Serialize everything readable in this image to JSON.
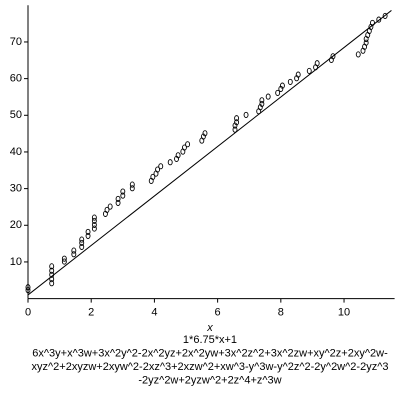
{
  "chart_data": {
    "type": "scatter",
    "xlabel": "x",
    "legend_lines": [
      "1*6.75*x+1",
      "6x^3y+x^3w+3x^2y^2-2x^2yz+2x^2yw+3x^2z^2+3x^2zw+xy^2z+2xy^2w-",
      "xyz^2+2xyzw+2xyw^2-2xz^3+2xzw^2+xw^3-y^3w-y^2z^2-2y^2w^2-2yz^3",
      "-2yz^2w+2yzw^2+2z^4+z^3w"
    ],
    "xlim": [
      0,
      11.6
    ],
    "ylim": [
      0,
      80
    ],
    "xticks": [
      0,
      2,
      4,
      6,
      8,
      10
    ],
    "yticks": [
      10,
      20,
      30,
      40,
      50,
      60,
      70
    ],
    "series": [
      {
        "style": "points",
        "color": "#000000",
        "x": [
          0,
          0,
          0.75,
          0.75,
          0.75,
          0.75,
          0.75,
          1.15,
          1.15,
          1.45,
          1.45,
          1.7,
          1.7,
          1.7,
          1.9,
          1.9,
          2.1,
          2.1,
          2.1,
          2.1,
          2.45,
          2.5,
          2.6,
          2.85,
          2.85,
          3.0,
          3.0,
          3.3,
          3.3,
          3.9,
          3.95,
          4.05,
          4.1,
          4.2,
          4.5,
          4.7,
          4.75,
          4.9,
          4.95,
          5.05,
          5.5,
          5.55,
          5.6,
          6.55,
          6.55,
          6.6,
          6.6,
          6.9,
          7.3,
          7.35,
          7.4,
          7.4,
          7.6,
          7.9,
          8.0,
          8.05,
          8.3,
          8.5,
          8.55,
          8.9,
          9.1,
          9.15,
          9.6,
          9.65,
          10.45,
          10.6,
          10.65,
          10.7,
          10.7,
          10.75,
          10.8,
          10.85,
          10.9,
          11.1,
          11.3
        ],
        "y": [
          2.3,
          3.1,
          4.2,
          5.3,
          6.5,
          7.6,
          8.8,
          10.1,
          10.9,
          12.1,
          13.1,
          14.1,
          15.2,
          16.1,
          17.1,
          18.2,
          19.1,
          20.1,
          21.2,
          22.1,
          23.1,
          24.2,
          25.1,
          26.1,
          27.2,
          28.1,
          29.2,
          30.1,
          31.1,
          32.1,
          33.2,
          34.1,
          35.2,
          36.1,
          37.2,
          38.1,
          39.1,
          40.1,
          41.2,
          42.1,
          43.1,
          44.2,
          45.1,
          46.1,
          47.2,
          48.1,
          49.2,
          50.1,
          51.1,
          52.2,
          53.1,
          54.1,
          55.1,
          56.1,
          57.2,
          58.1,
          59.1,
          60.1,
          61.1,
          62.1,
          63.1,
          64.2,
          65.1,
          66.1,
          66.6,
          67.6,
          68.7,
          69.8,
          70.8,
          71.9,
          73.0,
          74.1,
          75.2,
          76.1,
          77.1
        ]
      },
      {
        "style": "line",
        "color": "#000000",
        "x": [
          0,
          11.5
        ],
        "y": [
          1,
          78.6
        ]
      }
    ]
  }
}
